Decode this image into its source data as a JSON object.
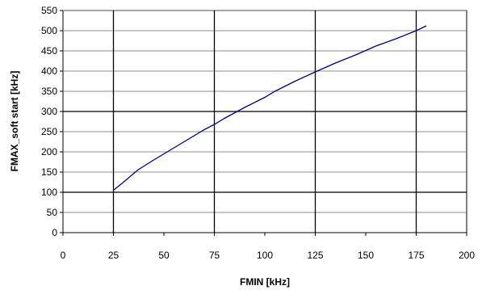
{
  "chart_data": {
    "type": "line",
    "xlabel": "FMIN [kHz]",
    "ylabel": "FMAX_soft start [kHz]",
    "xlim": [
      0,
      200
    ],
    "ylim": [
      0,
      550
    ],
    "x_ticks": [
      0,
      25,
      50,
      75,
      100,
      125,
      150,
      175,
      200
    ],
    "y_ticks": [
      0,
      50,
      100,
      150,
      200,
      250,
      300,
      350,
      400,
      450,
      500,
      550
    ],
    "grid": {
      "vertical_major": [
        25,
        75,
        125,
        175
      ],
      "horizontal_major": [
        100,
        300
      ],
      "horizontal_minor": [
        50,
        150,
        200,
        250,
        350,
        400,
        450,
        500,
        550
      ]
    },
    "series": [
      {
        "color": "#000080",
        "x": [
          25,
          30,
          37,
          45,
          50,
          60,
          70,
          75,
          80,
          90,
          100,
          105,
          115,
          125,
          135,
          145,
          155,
          165,
          175,
          180
        ],
        "y": [
          105,
          125,
          155,
          180,
          195,
          225,
          255,
          268,
          283,
          310,
          335,
          350,
          375,
          398,
          420,
          440,
          462,
          480,
          500,
          512
        ]
      }
    ]
  }
}
